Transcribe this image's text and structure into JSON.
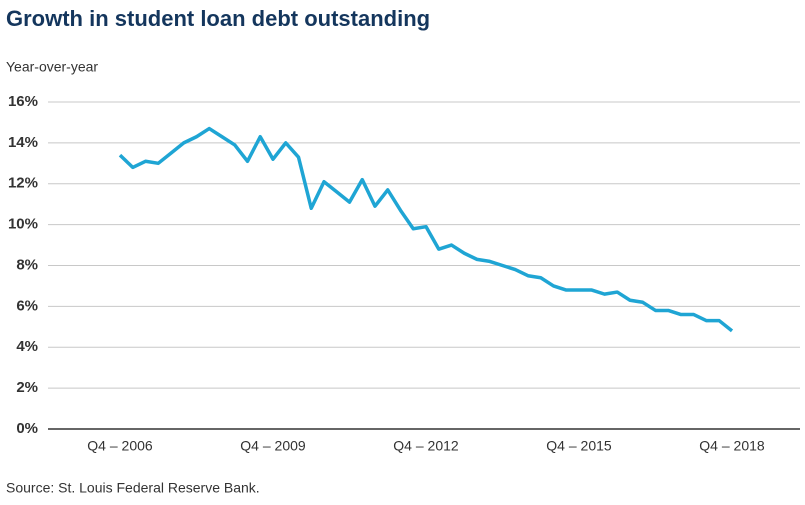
{
  "chart_data": {
    "type": "line",
    "title": "Growth in student loan debt outstanding",
    "y_label": "Year-over-year",
    "source": "Source: St. Louis Federal Reserve Bank.",
    "categories": [
      "Q4 – 2006",
      null,
      null,
      null,
      null,
      null,
      null,
      null,
      null,
      null,
      null,
      null,
      "Q4 – 2009",
      null,
      null,
      null,
      null,
      null,
      null,
      null,
      null,
      null,
      null,
      null,
      "Q4 – 2012",
      null,
      null,
      null,
      null,
      null,
      null,
      null,
      null,
      null,
      null,
      null,
      "Q4 – 2015",
      null,
      null,
      null,
      null,
      null,
      null,
      null,
      null,
      null,
      null,
      null,
      "Q4 – 2018"
    ],
    "series": [
      {
        "name": "Student loan debt growth",
        "color": "#1fa5d4",
        "values": [
          13.4,
          12.8,
          13.1,
          13.0,
          13.5,
          14.0,
          14.3,
          14.7,
          14.3,
          13.9,
          13.1,
          14.3,
          13.2,
          14.0,
          13.3,
          10.8,
          12.1,
          11.6,
          11.1,
          12.2,
          10.9,
          11.7,
          10.7,
          9.8,
          9.9,
          8.8,
          9.0,
          8.6,
          8.3,
          8.2,
          8.0,
          7.8,
          7.5,
          7.4,
          7.0,
          6.8,
          6.8,
          6.8,
          6.6,
          6.7,
          6.3,
          6.2,
          5.8,
          5.8,
          5.6,
          5.6,
          5.3,
          5.3,
          4.8
        ]
      }
    ],
    "ylim": [
      0,
      16
    ],
    "yticks": [
      {
        "value": 0,
        "label": "0%"
      },
      {
        "value": 2,
        "label": "2%"
      },
      {
        "value": 4,
        "label": "4%"
      },
      {
        "value": 6,
        "label": "6%"
      },
      {
        "value": 8,
        "label": "8%"
      },
      {
        "value": 10,
        "label": "10%"
      },
      {
        "value": 12,
        "label": "12%"
      },
      {
        "value": 14,
        "label": "14%"
      },
      {
        "value": 16,
        "label": "16%"
      }
    ],
    "grid": true
  }
}
